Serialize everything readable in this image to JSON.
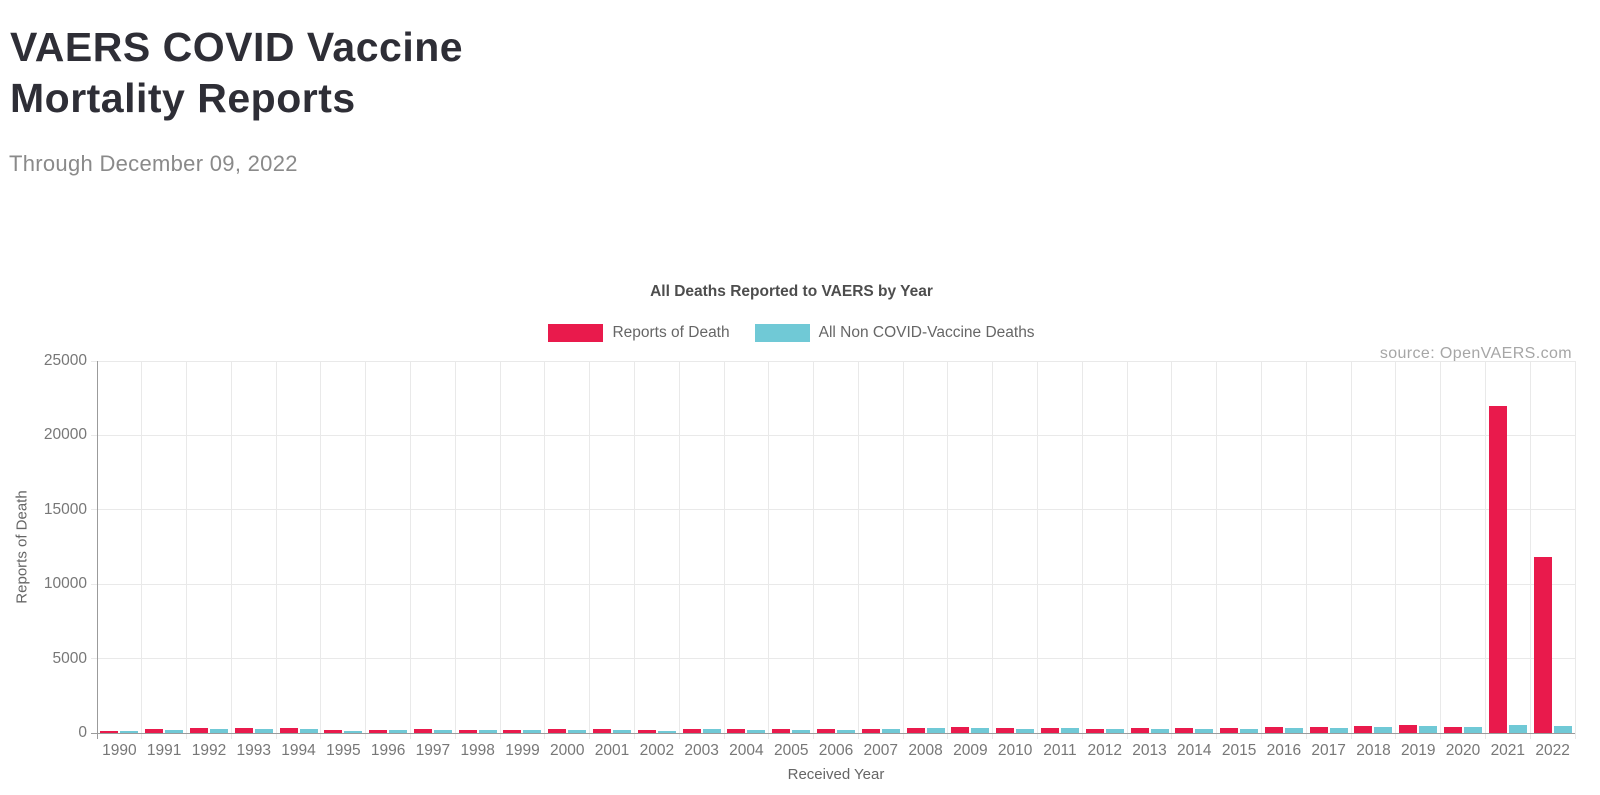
{
  "page": {
    "title_line1": "VAERS COVID Vaccine",
    "title_line2": "Mortality Reports",
    "subtitle": "Through December 09, 2022"
  },
  "chart": {
    "title": "All Deaths Reported to VAERS by Year",
    "source": "source: OpenVAERS.com",
    "xlabel": "Received Year",
    "ylabel": "Reports of Death"
  },
  "chart_data": {
    "type": "bar",
    "title": "All Deaths Reported to VAERS by Year",
    "xlabel": "Received Year",
    "ylabel": "Reports of Death",
    "ylim": [
      0,
      25000
    ],
    "yticks": [
      0,
      5000,
      10000,
      15000,
      20000,
      25000
    ],
    "grid": true,
    "legend_position": "top",
    "annotation": "source: OpenVAERS.com",
    "categories": [
      "1990",
      "1991",
      "1992",
      "1993",
      "1994",
      "1995",
      "1996",
      "1997",
      "1998",
      "1999",
      "2000",
      "2001",
      "2002",
      "2003",
      "2004",
      "2005",
      "2006",
      "2007",
      "2008",
      "2009",
      "2010",
      "2011",
      "2012",
      "2013",
      "2014",
      "2015",
      "2016",
      "2017",
      "2018",
      "2019",
      "2020",
      "2021",
      "2022"
    ],
    "series": [
      {
        "name": "Reports of Death",
        "color": "#E91A4C",
        "values": [
          120,
          270,
          310,
          310,
          310,
          230,
          230,
          240,
          210,
          210,
          280,
          240,
          190,
          300,
          240,
          260,
          280,
          280,
          350,
          370,
          330,
          350,
          290,
          340,
          315,
          315,
          385,
          400,
          470,
          540,
          380,
          22000,
          11860
        ]
      },
      {
        "name": "All Non COVID-Vaccine Deaths",
        "color": "#70C9D6",
        "values": [
          90,
          230,
          260,
          280,
          280,
          150,
          190,
          210,
          190,
          190,
          210,
          170,
          130,
          260,
          190,
          190,
          210,
          240,
          310,
          330,
          280,
          310,
          260,
          250,
          270,
          270,
          315,
          360,
          430,
          495,
          420,
          540,
          470
        ]
      }
    ]
  }
}
